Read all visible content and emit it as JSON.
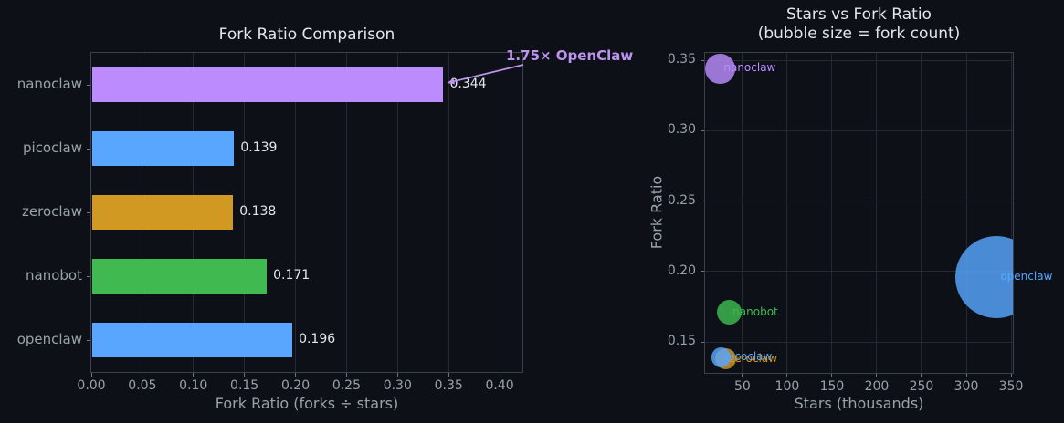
{
  "theme": {
    "background": "#0d1117",
    "grid_color": "#222933",
    "spine_color": "#3a414c",
    "tick_color": "#6e7681",
    "text_color": "#e2e7ed",
    "muted_text_color": "#99a1ab"
  },
  "chart_data": [
    {
      "type": "bar",
      "orientation": "horizontal",
      "title": "Fork Ratio Comparison",
      "xlabel": "Fork Ratio (forks ÷ stars)",
      "categories": [
        "nanoclaw",
        "picoclaw",
        "zeroclaw",
        "nanobot",
        "openclaw"
      ],
      "values": [
        0.344,
        0.139,
        0.138,
        0.171,
        0.196
      ],
      "value_labels": [
        "0.344",
        "0.139",
        "0.138",
        "0.171",
        "0.196"
      ],
      "bar_colors": [
        "#bc8cff",
        "#58a6ff",
        "#d29922",
        "#3fb950",
        "#58a6ff"
      ],
      "xlim": [
        0,
        0.4223
      ],
      "xticks": [
        0,
        0.05,
        0.1,
        0.15,
        0.2,
        0.25,
        0.3,
        0.35,
        0.4
      ],
      "xtick_labels": [
        "0.00",
        "0.05",
        "0.10",
        "0.15",
        "0.20",
        "0.25",
        "0.30",
        "0.35",
        "0.40"
      ],
      "grid": "x",
      "annotation": {
        "text": "1.75× OpenClaw",
        "color": "#bd93f0",
        "target_series": "nanoclaw",
        "target_value": 0.344
      }
    },
    {
      "type": "scatter",
      "title": "Stars vs Fork Ratio",
      "subtitle": "(bubble size = fork count)",
      "xlabel": "Stars (thousands)",
      "ylabel": "Fork Ratio",
      "points": [
        {
          "label": "nanoclaw",
          "stars_thousands": 25,
          "fork_ratio": 0.344,
          "forks_approx": 8600,
          "color": "#bc8cff"
        },
        {
          "label": "picoclaw",
          "stars_thousands": 26,
          "fork_ratio": 0.139,
          "forks_approx": 3600,
          "color": "#58a6ff"
        },
        {
          "label": "zeroclaw",
          "stars_thousands": 31,
          "fork_ratio": 0.138,
          "forks_approx": 4300,
          "color": "#d29922"
        },
        {
          "label": "nanobot",
          "stars_thousands": 35,
          "fork_ratio": 0.171,
          "forks_approx": 6000,
          "color": "#3fb950"
        },
        {
          "label": "openclaw",
          "stars_thousands": 334,
          "fork_ratio": 0.196,
          "forks_approx": 65500,
          "color": "#58a6ff"
        }
      ],
      "xlim": [
        8.3,
        352.0
      ],
      "ylim": [
        0.128,
        0.3552
      ],
      "xticks": [
        50,
        100,
        150,
        200,
        250,
        300,
        350
      ],
      "xtick_labels": [
        "50",
        "100",
        "150",
        "200",
        "250",
        "300",
        "350"
      ],
      "yticks": [
        0.35,
        0.3,
        0.25,
        0.2,
        0.15
      ],
      "ytick_labels": [
        "0.35",
        "0.30",
        "0.25",
        "0.20",
        "0.15"
      ],
      "grid": "both"
    }
  ]
}
